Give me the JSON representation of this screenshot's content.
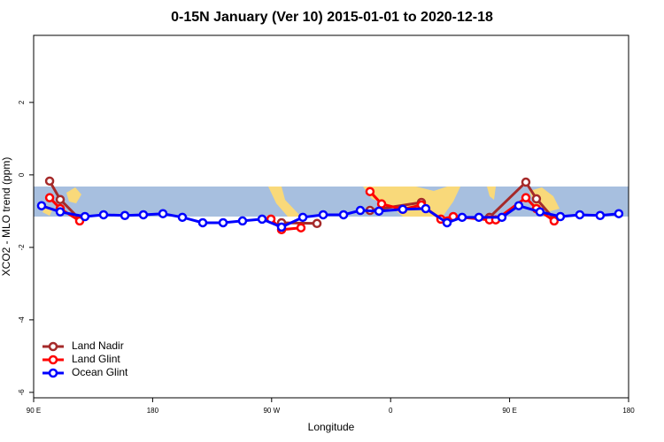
{
  "chart_data": {
    "type": "line",
    "title": "0-15N January (Ver 10)   2015-01-01 to 2020-12-18",
    "x_label": "Longitude",
    "y_label": "XCO2 - MLO trend (ppm)",
    "xlim": [
      90,
      540
    ],
    "ylim": [
      -6.15,
      3.85
    ],
    "xticks": [
      {
        "value": 90,
        "label": "90 E"
      },
      180,
      {
        "value": 270,
        "label": "90 W"
      },
      {
        "value": 360,
        "label": "0"
      },
      {
        "value": 450,
        "label": "90 E"
      },
      {
        "value": 540,
        "label": "180"
      }
    ],
    "yticks": [
      2,
      0,
      -2,
      -4,
      -6
    ],
    "legend": "bottom-left",
    "series": [
      {
        "name": "Land Nadir",
        "color": "#a52a2a",
        "x": [
          102.1,
          110.1,
          124.8,
          null,
          277.5,
          304.3,
          null,
          344.4,
          383.3,
          null,
          434.8,
          462.3,
          470.3,
          483.7
        ],
        "values": [
          -0.17,
          -0.68,
          -1.22,
          null,
          -1.32,
          -1.34,
          null,
          -0.98,
          -0.76,
          null,
          -1.17,
          -0.2,
          -0.66,
          -1.22
        ]
      },
      {
        "name": "Land Glint",
        "color": "#ff0000",
        "x": [
          102.1,
          110.1,
          124.8,
          null,
          269.5,
          277.5,
          292.2,
          null,
          344.4,
          353.2,
          369.2,
          383.3,
          398.0,
          407.4,
          434.8,
          439.5,
          462.3,
          470.3,
          483.7
        ],
        "values": [
          -0.63,
          -0.93,
          -1.27,
          null,
          -1.22,
          -1.51,
          -1.46,
          null,
          -0.46,
          -0.8,
          -0.95,
          -0.83,
          -1.22,
          -1.15,
          -1.24,
          -1.24,
          -0.63,
          -0.93,
          -1.27
        ]
      },
      {
        "name": "Ocean Glint",
        "color": "#0000ff",
        "x": [
          96.0,
          110.1,
          128.8,
          142.9,
          159.0,
          173.0,
          187.8,
          202.5,
          217.9,
          233.3,
          248.0,
          262.8,
          277.5,
          293.6,
          309.0,
          324.4,
          337.1,
          351.2,
          369.2,
          386.6,
          402.7,
          414.1,
          426.8,
          444.2,
          456.9,
          473.0,
          488.4,
          503.1,
          518.5,
          532.6
        ],
        "values": [
          -0.85,
          -1.02,
          -1.15,
          -1.1,
          -1.12,
          -1.1,
          -1.07,
          -1.17,
          -1.32,
          -1.32,
          -1.27,
          -1.22,
          -1.44,
          -1.17,
          -1.1,
          -1.1,
          -0.98,
          -1.0,
          -0.95,
          -0.93,
          -1.32,
          -1.17,
          -1.17,
          -1.17,
          -0.85,
          -1.02,
          -1.15,
          -1.1,
          -1.12,
          -1.07
        ]
      }
    ]
  }
}
